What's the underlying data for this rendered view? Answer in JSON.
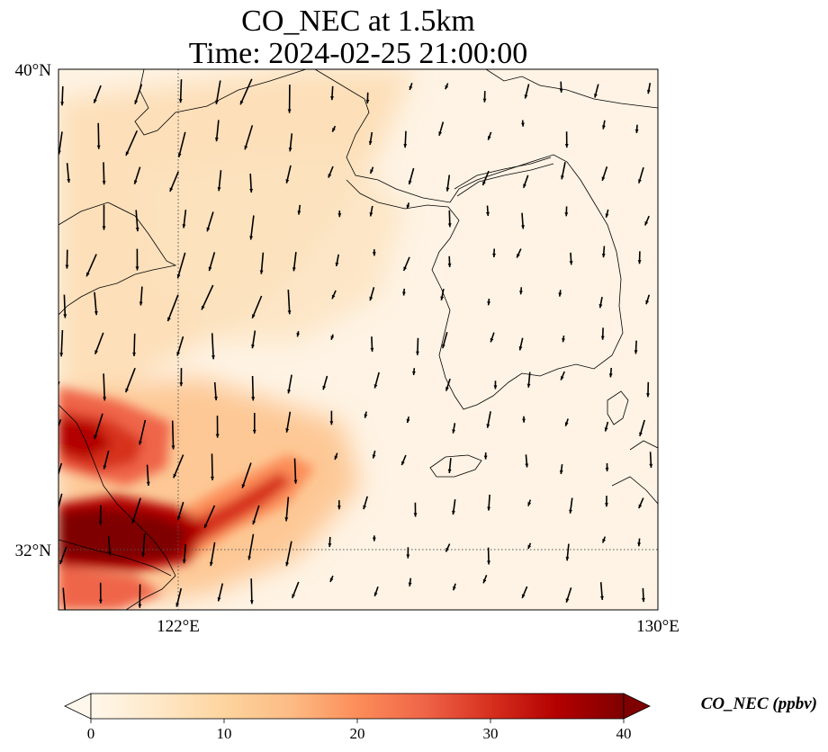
{
  "title": {
    "line1": "CO_NEC at 1.5km",
    "line2": "Time: 2024-02-25 21:00:00"
  },
  "map": {
    "lon_range": [
      120,
      130
    ],
    "lat_range": [
      31,
      40
    ],
    "lat_ticks": [
      {
        "value": 40,
        "label": "40°N"
      },
      {
        "value": 32,
        "label": "32°N"
      }
    ],
    "lon_ticks": [
      {
        "value": 122,
        "label": "122°E"
      },
      {
        "value": 130,
        "label": "130°E"
      }
    ],
    "gridlines": {
      "lon": [
        122
      ],
      "lat": [
        32
      ]
    }
  },
  "colorbar": {
    "title": "CO_NEC (ppbv)",
    "min": 0,
    "max": 40,
    "ticks": [
      "0",
      "10",
      "20",
      "30",
      "40"
    ],
    "colormap": "OrRd",
    "stops": [
      "#fff7ec",
      "#fee8c8",
      "#fdd49e",
      "#fdbb84",
      "#fc8d59",
      "#ef6548",
      "#d7301f",
      "#b30000",
      "#7f0000"
    ],
    "extend": "both"
  }
}
